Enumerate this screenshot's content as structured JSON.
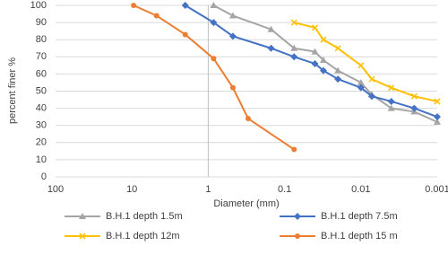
{
  "chart_data": {
    "type": "line",
    "x_label": "Diameter (mm)",
    "y_label": "percent finer %",
    "xlim": [
      100,
      0.001
    ],
    "xticks": [
      100,
      10,
      1,
      0.1,
      0.01,
      0.001
    ],
    "xlog": true,
    "ylim": [
      0,
      100
    ],
    "yticks": [
      0,
      10,
      20,
      30,
      40,
      50,
      60,
      70,
      80,
      90,
      100
    ],
    "grid": true,
    "y_axis_crosses": 1,
    "legend": "bottom",
    "series": [
      {
        "name": "B.H.1 depth 1.5m",
        "color": "#a5a5a5",
        "marker": "triangle",
        "x": [
          0.85,
          0.475,
          0.15,
          0.075,
          0.04,
          0.031,
          0.02,
          0.01,
          0.0072,
          0.004,
          0.002,
          0.001
        ],
        "values": [
          100,
          94,
          86,
          75,
          73,
          68,
          62,
          55,
          48,
          40,
          38,
          32
        ]
      },
      {
        "name": "B.H.1 depth 7.5m",
        "color": "#4472c4",
        "marker": "diamond",
        "x": [
          2.0,
          0.85,
          0.475,
          0.15,
          0.075,
          0.04,
          0.031,
          0.02,
          0.01,
          0.0072,
          0.004,
          0.002,
          0.001
        ],
        "values": [
          100,
          90,
          82,
          75,
          70,
          66,
          62,
          57,
          52,
          47,
          44,
          40,
          35
        ]
      },
      {
        "name": "B.H.1 depth 12m",
        "color": "#ffc000",
        "marker": "x",
        "x": [
          0.075,
          0.04,
          0.031,
          0.02,
          0.01,
          0.0072,
          0.004,
          0.002,
          0.001
        ],
        "values": [
          90,
          87,
          80,
          75,
          65,
          57,
          52,
          47,
          44
        ]
      },
      {
        "name": "B.H.1 depth 15 m",
        "color": "#ed7d31",
        "marker": "circle",
        "x": [
          9.5,
          4.75,
          2.0,
          0.85,
          0.475,
          0.3,
          0.075
        ],
        "values": [
          100,
          94,
          83,
          69,
          52,
          34,
          16
        ]
      }
    ]
  }
}
